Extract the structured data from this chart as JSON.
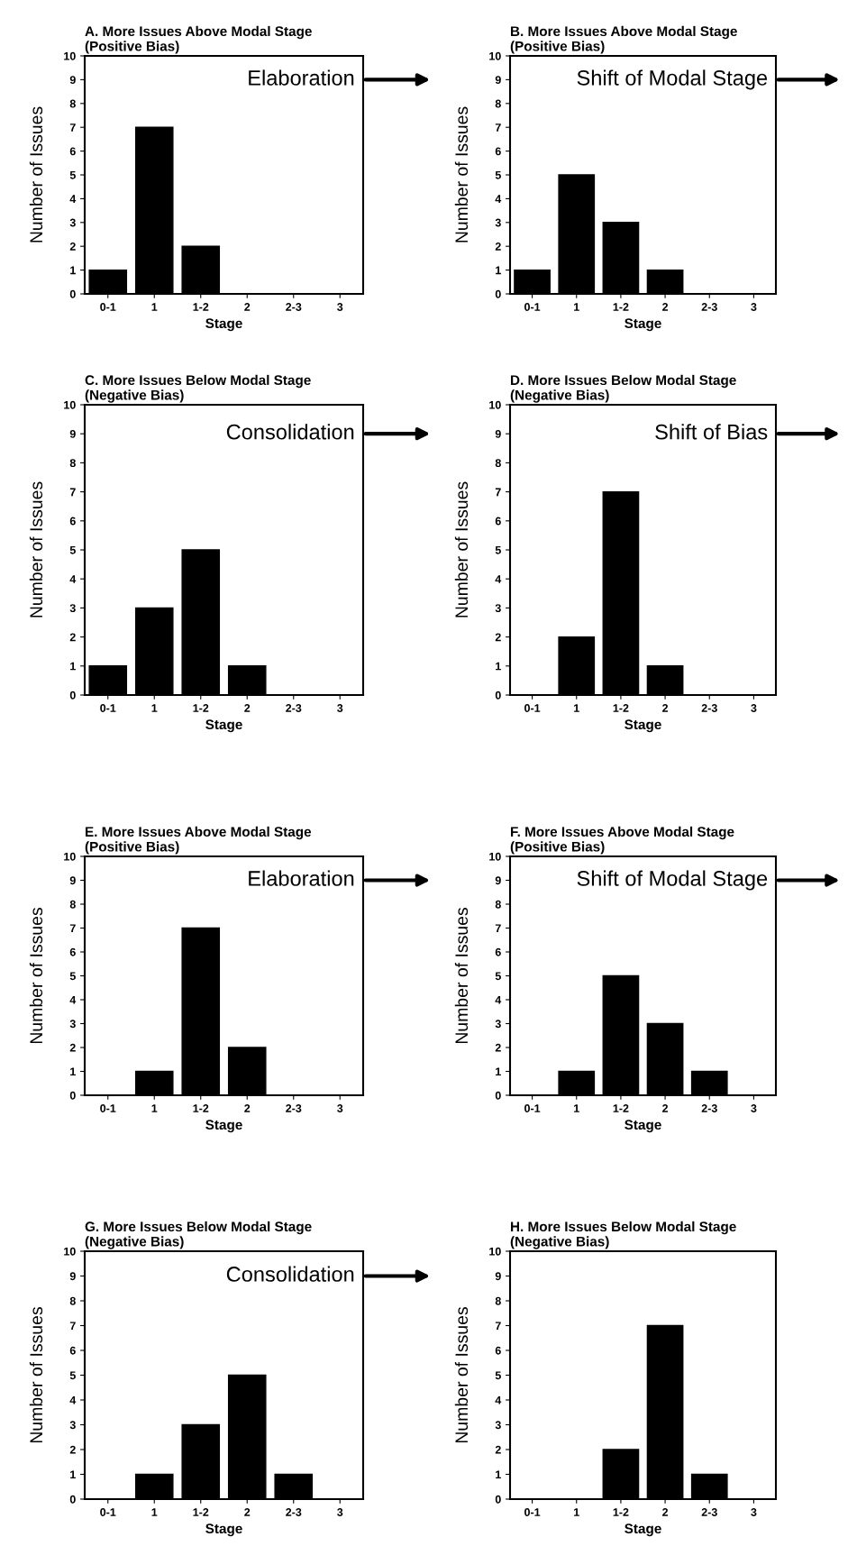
{
  "chart_data": [
    {
      "type": "bar",
      "title": "A. More Issues Above Modal Stage\n(Positive Bias)",
      "xlabel": "Stage",
      "ylabel": "Number of Issues",
      "categories": [
        "0-1",
        "1",
        "1-2",
        "2",
        "2-3",
        "3"
      ],
      "values": [
        1,
        7,
        2,
        0,
        0,
        0
      ],
      "color": "#000000",
      "ylim": [
        0,
        10
      ],
      "yticks": [
        0,
        1,
        2,
        3,
        4,
        5,
        6,
        7,
        8,
        9,
        10
      ],
      "grid": false,
      "annotations": [
        "Elaboration"
      ]
    },
    {
      "type": "bar",
      "title": "B. More Issues Above Modal Stage\n(Positive Bias)",
      "xlabel": "Stage",
      "ylabel": "Number of Issues",
      "categories": [
        "0-1",
        "1",
        "1-2",
        "2",
        "2-3",
        "3"
      ],
      "values": [
        1,
        5,
        3,
        1,
        0,
        0
      ],
      "color": "#000000",
      "ylim": [
        0,
        10
      ],
      "yticks": [
        0,
        1,
        2,
        3,
        4,
        5,
        6,
        7,
        8,
        9,
        10
      ],
      "grid": false,
      "annotations": [
        "Shift of Modal Stage"
      ]
    },
    {
      "type": "bar",
      "title": "C. More Issues Below Modal Stage\n(Negative Bias)",
      "xlabel": "Stage",
      "ylabel": "Number of Issues",
      "categories": [
        "0-1",
        "1",
        "1-2",
        "2",
        "2-3",
        "3"
      ],
      "values": [
        1,
        3,
        5,
        1,
        0,
        0
      ],
      "color": "#000000",
      "ylim": [
        0,
        10
      ],
      "yticks": [
        0,
        1,
        2,
        3,
        4,
        5,
        6,
        7,
        8,
        9,
        10
      ],
      "grid": false,
      "annotations": [
        "Consolidation"
      ]
    },
    {
      "type": "bar",
      "title": "D. More Issues Below Modal Stage\n(Negative Bias)",
      "xlabel": "Stage",
      "ylabel": "Number of Issues",
      "categories": [
        "0-1",
        "1",
        "1-2",
        "2",
        "2-3",
        "3"
      ],
      "values": [
        0,
        2,
        7,
        1,
        0,
        0
      ],
      "color": "#000000",
      "ylim": [
        0,
        10
      ],
      "yticks": [
        0,
        1,
        2,
        3,
        4,
        5,
        6,
        7,
        8,
        9,
        10
      ],
      "grid": false,
      "annotations": [
        "Shift of Bias"
      ]
    },
    {
      "type": "bar",
      "title": "E. More Issues Above Modal Stage\n(Positive Bias)",
      "xlabel": "Stage",
      "ylabel": "Number of Issues",
      "categories": [
        "0-1",
        "1",
        "1-2",
        "2",
        "2-3",
        "3"
      ],
      "values": [
        0,
        1,
        7,
        2,
        0,
        0
      ],
      "color": "#000000",
      "ylim": [
        0,
        10
      ],
      "yticks": [
        0,
        1,
        2,
        3,
        4,
        5,
        6,
        7,
        8,
        9,
        10
      ],
      "grid": false,
      "annotations": [
        "Elaboration"
      ]
    },
    {
      "type": "bar",
      "title": "F. More Issues Above Modal Stage\n(Positive Bias)",
      "xlabel": "Stage",
      "ylabel": "Number of Issues",
      "categories": [
        "0-1",
        "1",
        "1-2",
        "2",
        "2-3",
        "3"
      ],
      "values": [
        0,
        1,
        5,
        3,
        1,
        0
      ],
      "color": "#000000",
      "ylim": [
        0,
        10
      ],
      "yticks": [
        0,
        1,
        2,
        3,
        4,
        5,
        6,
        7,
        8,
        9,
        10
      ],
      "grid": false,
      "annotations": [
        "Shift of Modal Stage"
      ]
    },
    {
      "type": "bar",
      "title": "G. More Issues Below Modal Stage\n(Negative Bias)",
      "xlabel": "Stage",
      "ylabel": "Number of Issues",
      "categories": [
        "0-1",
        "1",
        "1-2",
        "2",
        "2-3",
        "3"
      ],
      "values": [
        0,
        1,
        3,
        5,
        1,
        0
      ],
      "color": "#000000",
      "ylim": [
        0,
        10
      ],
      "yticks": [
        0,
        1,
        2,
        3,
        4,
        5,
        6,
        7,
        8,
        9,
        10
      ],
      "grid": false,
      "annotations": [
        "Consolidation"
      ]
    },
    {
      "type": "bar",
      "title": "H. More Issues Below Modal Stage\n(Negative Bias)",
      "xlabel": "Stage",
      "ylabel": "Number of Issues",
      "categories": [
        "0-1",
        "1",
        "1-2",
        "2",
        "2-3",
        "3"
      ],
      "values": [
        0,
        0,
        2,
        7,
        1,
        0
      ],
      "color": "#000000",
      "ylim": [
        0,
        10
      ],
      "yticks": [
        0,
        1,
        2,
        3,
        4,
        5,
        6,
        7,
        8,
        9,
        10
      ],
      "grid": false
    }
  ]
}
